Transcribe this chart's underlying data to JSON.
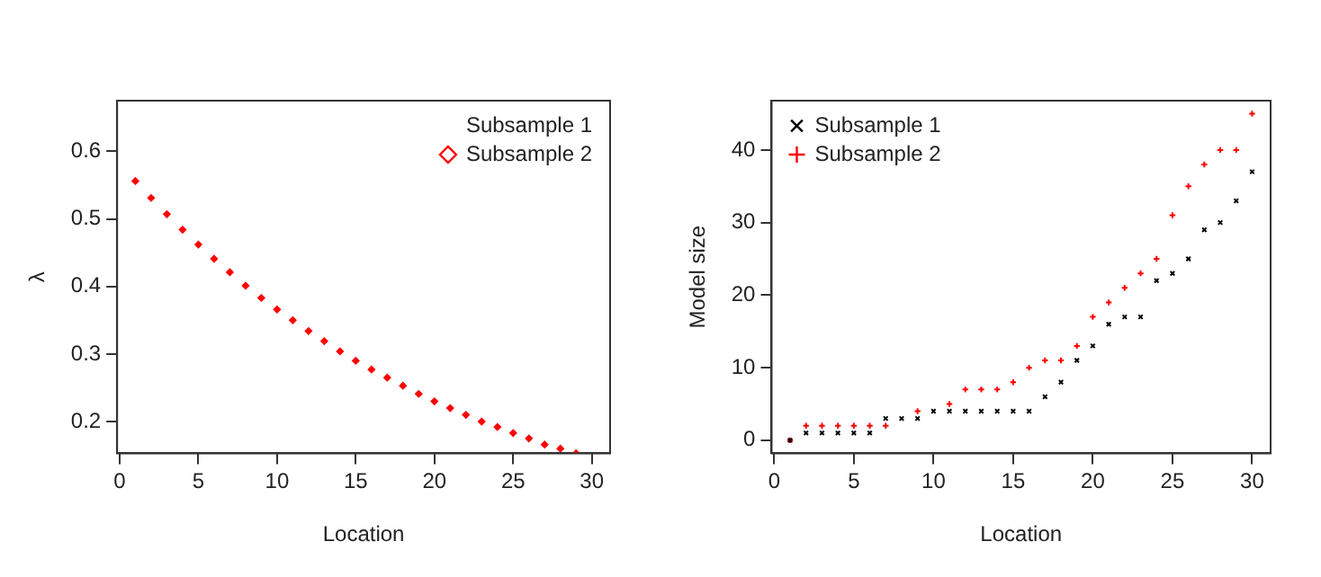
{
  "chart_data": [
    {
      "type": "scatter",
      "xlabel": "Location",
      "ylabel": "λ",
      "xlim": [
        -0.16,
        31.16
      ],
      "ylim": [
        0.153,
        0.675
      ],
      "xticks": [
        0,
        5,
        10,
        15,
        20,
        25,
        30
      ],
      "yticks": [
        0.2,
        0.3,
        0.4,
        0.5,
        0.6
      ],
      "grid": false,
      "legend": "top right",
      "x": [
        1,
        2,
        3,
        4,
        5,
        6,
        7,
        8,
        9,
        10,
        11,
        12,
        13,
        14,
        15,
        16,
        17,
        18,
        19,
        20,
        21,
        22,
        23,
        24,
        25,
        26,
        27,
        28,
        29
      ],
      "series": [
        {
          "name": "Subsample 1",
          "color": "#000000",
          "marker": "none",
          "values": [
            null,
            null,
            null,
            null,
            null,
            null,
            null,
            null,
            null,
            null,
            null,
            null,
            null,
            null,
            null,
            null,
            null,
            null,
            null,
            null,
            null,
            null,
            null,
            null,
            null,
            null,
            null,
            null,
            null
          ]
        },
        {
          "name": "Subsample 2",
          "color": "#ff0000",
          "marker": "diamond",
          "values": [
            0.556,
            0.531,
            0.507,
            0.484,
            0.462,
            0.441,
            0.421,
            0.401,
            0.383,
            0.366,
            0.35,
            0.334,
            0.319,
            0.304,
            0.29,
            0.277,
            0.265,
            0.253,
            0.241,
            0.23,
            0.22,
            0.21,
            0.2,
            0.192,
            0.183,
            0.175,
            0.166,
            0.16,
            0.153
          ]
        }
      ]
    },
    {
      "type": "scatter",
      "xlabel": "Location",
      "ylabel": "Model size",
      "xlim": [
        -0.16,
        31.16
      ],
      "ylim": [
        -1.8,
        46.8
      ],
      "xticks": [
        0,
        5,
        10,
        15,
        20,
        25,
        30
      ],
      "yticks": [
        0,
        10,
        20,
        30,
        40
      ],
      "grid": false,
      "legend": "top left",
      "x": [
        1,
        2,
        3,
        4,
        5,
        6,
        7,
        8,
        9,
        10,
        11,
        12,
        13,
        14,
        15,
        16,
        17,
        18,
        19,
        20,
        21,
        22,
        23,
        24,
        25,
        26,
        27,
        28,
        29,
        30
      ],
      "series": [
        {
          "name": "Subsample 1",
          "color": "#000000",
          "marker": "x",
          "values": [
            0,
            1,
            1,
            1,
            1,
            1,
            3,
            3,
            3,
            4,
            4,
            4,
            4,
            4,
            4,
            4,
            6,
            8,
            11,
            13,
            16,
            17,
            17,
            22,
            23,
            25,
            29,
            30,
            33,
            37
          ]
        },
        {
          "name": "Subsample 2",
          "color": "#ff0000",
          "marker": "cross",
          "values": [
            0,
            2,
            2,
            2,
            2,
            2,
            2,
            null,
            4,
            null,
            5,
            7,
            7,
            7,
            8,
            10,
            11,
            11,
            13,
            17,
            19,
            21,
            23,
            25,
            31,
            35,
            38,
            40,
            40,
            45
          ]
        }
      ]
    }
  ]
}
